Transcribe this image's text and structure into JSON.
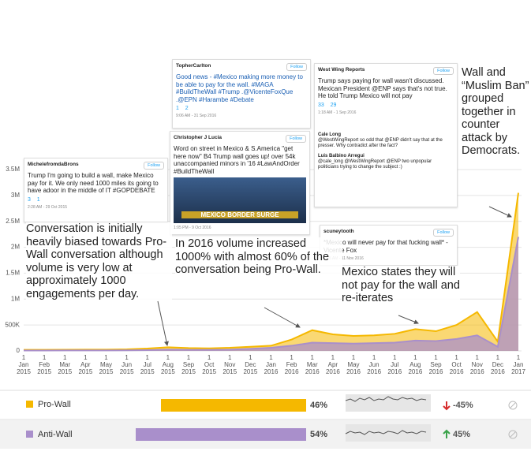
{
  "chart_data": {
    "type": "area",
    "categories": [
      "1 Jan 2015",
      "1 Feb 2015",
      "1 Mar 2015",
      "1 Apr 2015",
      "1 May 2015",
      "1 Jun 2015",
      "1 Jul 2015",
      "1 Aug 2015",
      "1 Sep 2015",
      "1 Oct 2015",
      "1 Nov 2015",
      "1 Dec 2015",
      "1 Jan 2016",
      "1 Feb 2016",
      "1 Mar 2016",
      "1 Apr 2016",
      "1 May 2016",
      "1 Jun 2016",
      "1 Jul 2016",
      "1 Aug 2016",
      "1 Sep 2016",
      "1 Oct 2016",
      "1 Nov 2016",
      "1 Dec 2016",
      "1 Jan 2017"
    ],
    "series": [
      {
        "name": "Pro-Wall",
        "color": "#f5b800",
        "values": [
          20000,
          20000,
          22000,
          25000,
          25000,
          30000,
          45000,
          70000,
          55000,
          50000,
          60000,
          80000,
          100000,
          220000,
          400000,
          320000,
          290000,
          300000,
          330000,
          420000,
          380000,
          500000,
          750000,
          180000,
          3050000
        ]
      },
      {
        "name": "Anti-Wall",
        "color": "#a98fcb",
        "values": [
          8000,
          8000,
          9000,
          10000,
          10000,
          12000,
          15000,
          25000,
          20000,
          20000,
          25000,
          40000,
          60000,
          100000,
          160000,
          150000,
          140000,
          150000,
          160000,
          200000,
          190000,
          230000,
          300000,
          80000,
          2200000
        ]
      }
    ],
    "ylim": [
      0,
      3500000
    ],
    "yticks": [
      0,
      {
        "value": 500000,
        "label": "500K"
      },
      {
        "value": 1000000,
        "label": "1M"
      },
      {
        "value": 1500000,
        "label": "1.5M"
      },
      {
        "value": 2000000,
        "label": "2M"
      },
      {
        "value": 2500000,
        "label": "2.5M"
      },
      {
        "value": 3000000,
        "label": "3M"
      },
      {
        "value": 3500000,
        "label": "3.5M"
      }
    ],
    "grid": true,
    "annotations": [
      "Conversation is initially heavily biased towards Pro-Wall conversation although volume is very low at approximately 1000 engagements per day.",
      "In 2016 volume increased 1000% with almost 60% of the conversation being Pro-Wall.",
      "Mexico states they will not pay for the wall and re-iterates",
      "Wall and “Muslim Ban” grouped together in counter attack by Democrats."
    ],
    "summary": {
      "shares": [
        46,
        54
      ],
      "share_labels": [
        "46%",
        "54%"
      ],
      "changes": [
        -45,
        45
      ],
      "change_labels": [
        "-45%",
        "45%"
      ]
    }
  },
  "follow_label": "Follow",
  "tweets": [
    {
      "author": "MichelefromdaBrons",
      "text": "Trump I'm going to build a wall, make Mexico pay for it. We only need 1000 miles its going to have adoor in the middle of IT #GOPDEBATE",
      "retweets": "3",
      "likes": "1",
      "time": "2:28 AM - 29 Oct 2015"
    },
    {
      "author": "TopherCarlton",
      "text": "Good news - #Mexico making more money to be able to pay for the wall. #MAGA #BuildTheWall #Trump .@VicenteFoxQue .@EPN #Harambe #Debate",
      "retweets": "1",
      "likes": "2",
      "time": "9:06 AM - 31 Sep 2016"
    },
    {
      "author": "Christopher J Lucia",
      "text": "Word on street in Mexico & S.America \"get here now\" B4 Trump wall goes up! over 54k unaccompanied minors in '16 #LawAndOrder #BuildTheWall",
      "image_caption": "MEXICO BORDER SURGE",
      "time": "1:05 PM - 9 Oct 2016"
    },
    {
      "author": "West Wing Reports",
      "text": "Trump says paying for wall wasn't discussed. Mexican President @ENP says that's not true. He told Trump Mexico will not pay",
      "retweets": "33",
      "likes": "29",
      "time": "1:18 AM - 1 Sep 2016",
      "replies": [
        {
          "author": "Cale Long",
          "text": "@WestWingReport so odd that @ENP didn't say that at the presser. Why contradict after the fact?"
        },
        {
          "author": "Luis Balbino Arregui",
          "text": "@cale_long @WestWingReport @ENP two unpopular politicians trying to change the subject :)"
        }
      ]
    },
    {
      "author": "scuneytooth",
      "text": "*Mexico will never pay for that fucking wall* - Vicente Fox",
      "time": "7:05 AM - 11 Nov 2016"
    }
  ]
}
